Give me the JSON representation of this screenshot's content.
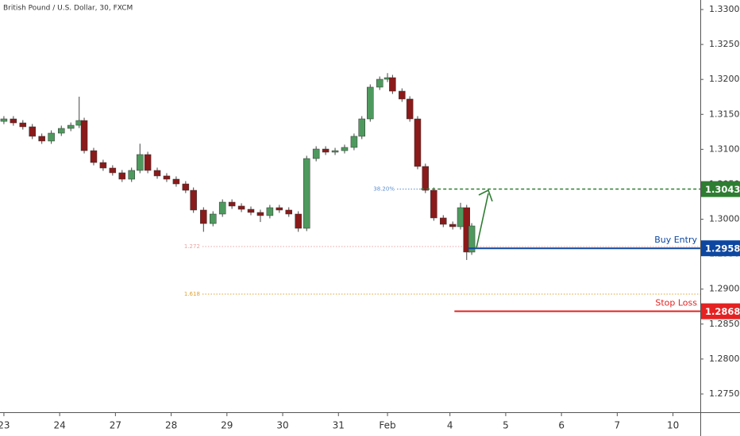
{
  "chart_data": {
    "type": "candlestick",
    "title": "British Pound / U.S. Dollar, 30, FXCM",
    "up_color": "#4e9a5e",
    "down_color": "#8b1a1a",
    "xlim": [
      -0.07,
      12.49
    ],
    "ylim": [
      1.27239,
      1.33136
    ],
    "xticks": [
      {
        "value": 0,
        "label": "23"
      },
      {
        "value": 1,
        "label": "24"
      },
      {
        "value": 2,
        "label": "27"
      },
      {
        "value": 3,
        "label": "28"
      },
      {
        "value": 4,
        "label": "29"
      },
      {
        "value": 5,
        "label": "30"
      },
      {
        "value": 6,
        "label": "31"
      },
      {
        "value": 6.88,
        "label": "Feb"
      },
      {
        "value": 8,
        "label": "4"
      },
      {
        "value": 9,
        "label": "5"
      },
      {
        "value": 10,
        "label": "6"
      },
      {
        "value": 11,
        "label": "7"
      },
      {
        "value": 12,
        "label": "10"
      }
    ],
    "yticks": [
      {
        "value": 1.33,
        "label": "1.33000"
      },
      {
        "value": 1.325,
        "label": "1.32500"
      },
      {
        "value": 1.32,
        "label": "1.32000"
      },
      {
        "value": 1.315,
        "label": "1.31500"
      },
      {
        "value": 1.31,
        "label": "1.31000"
      },
      {
        "value": 1.305,
        "label": "1.30500"
      },
      {
        "value": 1.3,
        "label": "1.30000"
      },
      {
        "value": 1.295,
        "label": "1.29500"
      },
      {
        "value": 1.29,
        "label": "1.29000"
      },
      {
        "value": 1.285,
        "label": "1.28500"
      },
      {
        "value": 1.28,
        "label": "1.28000"
      },
      {
        "value": 1.275,
        "label": "1.27500"
      }
    ],
    "x": [
      0.0,
      0.17,
      0.34,
      0.51,
      0.68,
      0.85,
      1.03,
      1.2,
      1.35,
      1.44,
      1.61,
      1.78,
      1.95,
      2.12,
      2.29,
      2.44,
      2.58,
      2.75,
      2.92,
      3.09,
      3.26,
      3.4,
      3.58,
      3.75,
      3.92,
      4.09,
      4.26,
      4.43,
      4.6,
      4.77,
      4.94,
      5.11,
      5.28,
      5.43,
      5.6,
      5.77,
      5.94,
      6.11,
      6.28,
      6.42,
      6.57,
      6.74,
      6.88,
      6.97,
      7.14,
      7.28,
      7.42,
      7.56,
      7.71,
      7.88,
      8.05,
      8.19,
      8.3,
      8.39
    ],
    "open": [
      1.314,
      1.31435,
      1.31378,
      1.31322,
      1.31186,
      1.31118,
      1.31231,
      1.31299,
      1.31344,
      1.31412,
      1.30981,
      1.30811,
      1.30732,
      1.30664,
      1.30573,
      1.30698,
      1.30925,
      1.30698,
      1.30619,
      1.30573,
      1.30505,
      1.30414,
      1.30131,
      1.29938,
      1.30074,
      1.30244,
      1.30188,
      1.30142,
      1.30097,
      1.30052,
      1.30165,
      1.30131,
      1.30074,
      1.2987,
      1.30868,
      1.31004,
      1.30959,
      1.30981,
      1.31027,
      1.31186,
      1.31435,
      1.31889,
      1.32002,
      1.32025,
      1.31832,
      1.31719,
      1.31435,
      1.30755,
      1.30414,
      1.30018,
      1.29927,
      1.29893,
      1.30165,
      1.2953
    ],
    "high": [
      1.31475,
      1.31475,
      1.31418,
      1.31362,
      1.31226,
      1.31271,
      1.31339,
      1.31384,
      1.31753,
      1.31452,
      1.31021,
      1.30851,
      1.30772,
      1.30704,
      1.30738,
      1.3108,
      1.30965,
      1.30738,
      1.30659,
      1.30613,
      1.30545,
      1.30454,
      1.30171,
      1.30114,
      1.30284,
      1.30284,
      1.30228,
      1.30182,
      1.30137,
      1.30205,
      1.30205,
      1.30171,
      1.30114,
      1.30908,
      1.31044,
      1.31044,
      1.31021,
      1.31067,
      1.31226,
      1.31475,
      1.31929,
      1.32042,
      1.3209,
      1.32065,
      1.31872,
      1.31759,
      1.31475,
      1.30795,
      1.30454,
      1.30058,
      1.29967,
      1.30235,
      1.30205,
      1.29944
    ],
    "low": [
      1.3136,
      1.31338,
      1.31282,
      1.31146,
      1.31078,
      1.31078,
      1.31191,
      1.31259,
      1.31304,
      1.30941,
      1.30771,
      1.30692,
      1.30624,
      1.30533,
      1.30533,
      1.30658,
      1.30658,
      1.30579,
      1.30533,
      1.30465,
      1.30374,
      1.30091,
      1.2982,
      1.29898,
      1.30034,
      1.30148,
      1.30102,
      1.30057,
      1.2996,
      1.30012,
      1.30091,
      1.30034,
      1.2982,
      1.2983,
      1.30828,
      1.30919,
      1.30919,
      1.30941,
      1.30987,
      1.31146,
      1.31395,
      1.31849,
      1.31962,
      1.31792,
      1.31679,
      1.31395,
      1.30715,
      1.30374,
      1.29978,
      1.29887,
      1.29853,
      1.29853,
      1.29417,
      1.2949
    ],
    "close": [
      1.31435,
      1.31378,
      1.31322,
      1.31186,
      1.31118,
      1.31231,
      1.31299,
      1.31344,
      1.31412,
      1.30981,
      1.30811,
      1.30732,
      1.30664,
      1.30573,
      1.30698,
      1.30925,
      1.30698,
      1.30619,
      1.30573,
      1.30505,
      1.30414,
      1.30131,
      1.29938,
      1.30074,
      1.30244,
      1.30188,
      1.30142,
      1.30097,
      1.30052,
      1.30165,
      1.30131,
      1.30074,
      1.2987,
      1.30868,
      1.31004,
      1.30959,
      1.30981,
      1.31027,
      1.31186,
      1.31435,
      1.31889,
      1.32002,
      1.32025,
      1.31832,
      1.31719,
      1.31435,
      1.30755,
      1.30414,
      1.30018,
      1.29927,
      1.29893,
      1.30165,
      1.2953,
      1.29904
    ],
    "fib_levels": [
      {
        "label": "38.20%",
        "value": 1.30431,
        "x_start": 7.05,
        "x_end": 7.48,
        "color": "#5b8fd0"
      },
      {
        "label": "1.272",
        "value": 1.29609,
        "x_start": 3.56,
        "color": "#eba3a3"
      },
      {
        "label": "1.618",
        "value": 1.28929,
        "x_start": 3.56,
        "color": "#e0a030"
      }
    ],
    "levels": [
      {
        "value": 1.30431,
        "color": "#2e7d32",
        "dashed": true,
        "x_start": 7.48
      },
      {
        "value": 1.29584,
        "color": "#0d47a1",
        "dashed": false,
        "x_start": 8.33,
        "name": "Buy Entry"
      },
      {
        "value": 1.28683,
        "color": "#e52222",
        "dashed": false,
        "x_start": 8.08,
        "name": "Stop Loss"
      }
    ]
  }
}
